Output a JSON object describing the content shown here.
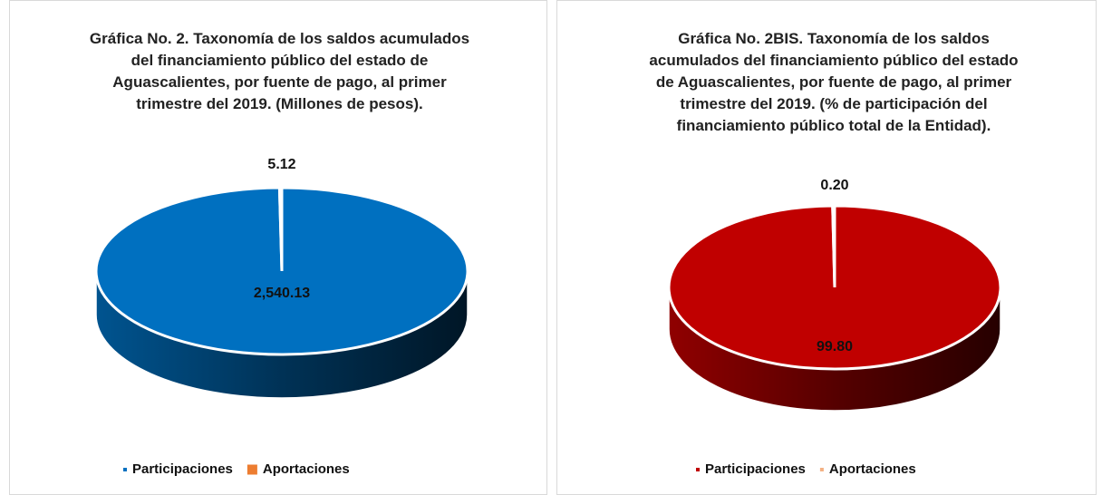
{
  "chart_data": [
    {
      "type": "pie",
      "title": "Gráfica No. 2. Taxonomía de los saldos acumulados del financiamiento público del estado de Aguascalientes, por fuente de pago, al primer trimestre del 2019. (Millones de pesos).",
      "categories": [
        "Participaciones",
        "Aportaciones"
      ],
      "values": [
        2540.13,
        5.12
      ],
      "value_labels": [
        "2,540.13",
        "5.12"
      ],
      "colors": [
        "#0070c0",
        "#ed7d31"
      ],
      "legend": "bottom"
    },
    {
      "type": "pie",
      "title": "Gráfica No. 2BIS. Taxonomía de los saldos acumulados del financiamiento público del estado de Aguascalientes, por fuente de pago, al primer trimestre del 2019. (% de participación del financiamiento público total de la Entidad).",
      "categories": [
        "Participaciones",
        "Aportaciones"
      ],
      "values": [
        99.8,
        0.2
      ],
      "value_labels": [
        "99.80",
        "0.20"
      ],
      "colors": [
        "#c00000",
        "#f4b183"
      ],
      "legend": "bottom"
    }
  ]
}
